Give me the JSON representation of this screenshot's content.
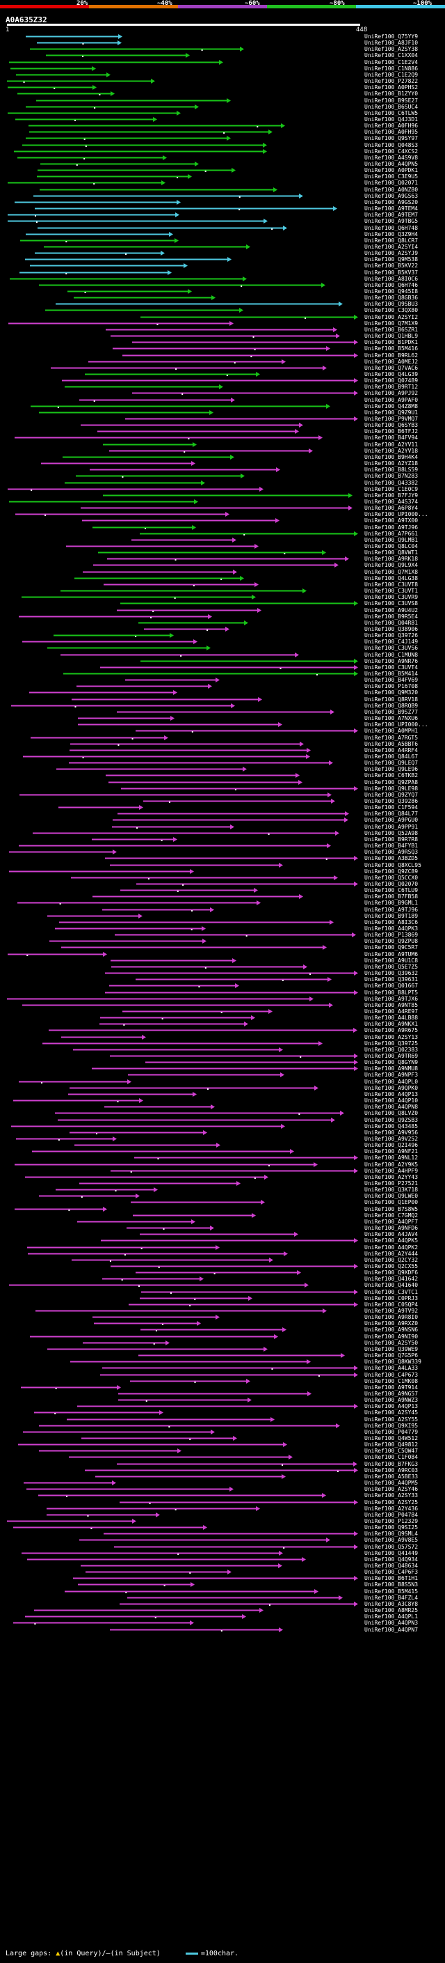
{
  "header": {
    "query_id": "A0A635Z32",
    "query_start": "1",
    "query_end": "448",
    "scale": {
      "labels": [
        "20%",
        "~40%",
        "~60%",
        "~80%",
        "~100%"
      ],
      "colors": [
        "#e00000",
        "#e07000",
        "#a040c0",
        "#20c020",
        "#40c8e8"
      ]
    }
  },
  "colors": {
    "cyan": "#4ec9e0",
    "green": "#18c418",
    "magenta": "#d040d0",
    "gap": "#ffffff"
  },
  "hits": [
    "UniRef100_Q75YY9",
    "UniRef100_A8JF10",
    "UniRef100_A2SY38",
    "UniRef100_C1XX04",
    "UniRef100_C1E2V4",
    "UniRef100_C1N886",
    "UniRef100_C1E2Q9",
    "UniRef100_P27822",
    "UniRef100_A0PHS2",
    "UniRef100_B1ZYY0",
    "UniRef100_B9SE27",
    "UniRef100_B6SUC4",
    "UniRef100_C6TLW5",
    "UniRef100_Q4J3D1",
    "UniRef100_A0FH96",
    "UniRef100_A0FH95",
    "UniRef100_Q9SY97",
    "UniRef100_Q048S3",
    "UniRef100_C4XCS2",
    "UniRef100_A4S9V8",
    "UniRef100_A4QPN5",
    "UniRef100_A0PDK1",
    "UniRef100_C3E9U5",
    "UniRef100_Q02071",
    "UniRef100_A0NZ80",
    "UniRef100_A9GS63",
    "UniRef100_A9GS20",
    "UniRef100_A9TEM4",
    "UniRef100_A9TEM7",
    "UniRef100_A9TBG5",
    "UniRef100_Q6H748",
    "UniRef100_Q3Z9H4",
    "UniRef100_Q8LCR7",
    "UniRef100_A2SYI4",
    "UniRef100_A2SYJ9",
    "UniRef100_Q9M538",
    "UniRef100_B5KV22",
    "UniRef100_B5KV37",
    "UniRef100_A8I0C6",
    "UniRef100_Q6H746",
    "UniRef100_Q945I8",
    "UniRef100_Q8GB36",
    "UniRef100_Q9SBU3",
    "UniRef100_C3QX80",
    "UniRef100_A2SYI2",
    "UniRef100_Q7M1X9",
    "UniRef100_B6SZR1",
    "UniRef100_Q1HBL9",
    "UniRef100_B1PDK1",
    "UniRef100_B5M416",
    "UniRef100_B9RL62",
    "UniRef100_A0MEJ2",
    "UniRef100_Q7VAC6",
    "UniRef100_Q4LG39",
    "UniRef100_Q07489",
    "UniRef100_B9RT12",
    "UniRef100_A9PJ92",
    "UniRef100_A9PAF0",
    "UniRef100_Q4Z8M8",
    "UniRef100_Q9Z9U1",
    "UniRef100_P9VMQ7",
    "UniRef100_Q6SYB3",
    "UniRef100_B6TFJ2",
    "UniRef100_B4FV94",
    "UniRef100_A2YV11",
    "UniRef100_A2YV18",
    "UniRef100_B9H4K4",
    "UniRef100_A2YZ18",
    "UniRef100_B8LS59",
    "UniRef100_B7N283",
    "UniRef100_Q43382",
    "UniRef100_C1E0C9",
    "UniRef100_B7FJY9",
    "UniRef100_A4S374",
    "UniRef100_A6P8Y4",
    "UniRef100_UPI000...",
    "UniRef100_A9TX00",
    "UniRef100_A9TJ96",
    "UniRef100_A7P661",
    "UniRef100_Q9LMB1",
    "UniRef100_Q8LC04",
    "UniRef100_Q8VWT1",
    "UniRef100_A9RK18",
    "UniRef100_Q9L9X4",
    "UniRef100_Q7M1X8",
    "UniRef100_Q4LG38",
    "UniRef100_C3UVT8",
    "UniRef100_C3UVT1",
    "UniRef100_C3UVR9",
    "UniRef100_C3UVS8",
    "UniRef100_A9U4U2",
    "UniRef100_B9R5E4",
    "UniRef100_Q04R81",
    "UniRef100_Q38906",
    "UniRef100_Q39726",
    "UniRef100_C4J149",
    "UniRef100_C3UVS6",
    "UniRef100_C1MUN8",
    "UniRef100_A9NR76",
    "UniRef100_C3UVT4",
    "UniRef100_B5M414",
    "UniRef100_B4FV69",
    "UniRef100_P16708",
    "UniRef100_Q9M320",
    "UniRef100_Q8RV18",
    "UniRef100_Q8RQB9",
    "UniRef100_B9SZ77",
    "UniRef100_A7NXU6",
    "UniRef100_UPI000...",
    "UniRef100_A0MPH1",
    "UniRef100_A7RGT5",
    "UniRef100_A5BBT6",
    "UniRef100_A4RRF4",
    "UniRef100_Q84L67",
    "UniRef100_Q9LEQ7",
    "UniRef100_Q9LE96",
    "UniRef100_C6TKB2",
    "UniRef100_Q9ZPA8",
    "UniRef100_Q9LE98",
    "UniRef100_Q9ZYQ7",
    "UniRef100_Q39286",
    "UniRef100_C1F594",
    "UniRef100_Q84L77",
    "UniRef100_A9PGU0",
    "UniRef100_A9PP91",
    "UniRef100_Q52A98",
    "UniRef100_B9R7R8",
    "UniRef100_B4FYB1",
    "UniRef100_A9RSQ3",
    "UniRef100_A3BZD5",
    "UniRef100_Q8XCL95",
    "UniRef100_Q9ZC89",
    "UniRef100_Q5CCX0",
    "UniRef100_Q02070",
    "UniRef100_C6TLU9",
    "UniRef100_B7FB58",
    "UniRef100_B9GML1",
    "UniRef100_A9TJ96",
    "UniRef100_B9T189",
    "UniRef100_A8I3C6",
    "UniRef100_A4QPK3",
    "UniRef100_P13869",
    "UniRef100_Q9ZPU8",
    "UniRef100_Q9C5R7",
    "UniRef100_A9TUM6",
    "UniRef100_A9U1C8",
    "UniRef100_Q5E7Z5",
    "UniRef100_Q39632",
    "UniRef100_Q39631",
    "UniRef100_Q01667",
    "UniRef100_B8LPT5",
    "UniRef100_A9TJX6",
    "UniRef100_A9NT85",
    "UniRef100_A4RE97",
    "UniRef100_A4LB88",
    "UniRef100_A9NKX1",
    "UniRef100_A9R675",
    "UniRef100_A2SY13",
    "UniRef100_Q39725",
    "UniRef100_Q02383",
    "UniRef100_A9TR69",
    "UniRef100_Q8GYN9",
    "UniRef100_A9NMU8",
    "UniRef100_A9NPF3",
    "UniRef100_A4QPL0",
    "UniRef100_A9QPK0",
    "UniRef100_A4QP13",
    "UniRef100_A4QP10",
    "UniRef100_A4QPN8",
    "UniRef100_Q8LVZ0",
    "UniRef100_Q9ZSB3",
    "UniRef100_Q43485",
    "UniRef100_A9V956",
    "UniRef100_A9V252",
    "UniRef100_Q2I496",
    "UniRef100_A9NF21",
    "UniRef100_A9NL12",
    "UniRef100_A2Y9K5",
    "UniRef100_A4HPF9",
    "UniRef100_A2YY43",
    "UniRef100_P27521",
    "UniRef100_Q3K718",
    "UniRef100_Q9LWE0",
    "UniRef100_Q1EP00",
    "UniRef100_B7S8W5",
    "UniRef100_C7GMQ2",
    "UniRef100_A4QPF7",
    "UniRef100_A9NFD6",
    "UniRef100_A4JAV4",
    "UniRef100_A4QPK5",
    "UniRef100_A4QPK2",
    "UniRef100_A2Y444",
    "UniRef100_Q2CY32",
    "UniRef100_Q2CX55",
    "UniRef100_Q9XDF6",
    "UniRef100_Q41642",
    "UniRef100_Q41640",
    "UniRef100_C3VTC1",
    "UniRef100_C0PRJ3",
    "UniRef100_C0SQP4",
    "UniRef100_A9TV92",
    "UniRef100_A9R8I0",
    "UniRef100_A9RXZ0",
    "UniRef100_A9NSN6",
    "UniRef100_A9NI90",
    "UniRef100_A2SY50",
    "UniRef100_Q39WE9",
    "UniRef100_Q7G5P6",
    "UniRef100_Q8KW339",
    "UniRef100_A4LA33",
    "UniRef100_C4P673",
    "UniRef100_C1MK08",
    "UniRef100_A9T914",
    "UniRef100_A9NG57",
    "UniRef100_A9NWZ3",
    "UniRef100_A4QP13",
    "UniRef100_A2SY45",
    "UniRef100_A2SY55",
    "UniRef100_Q9XI95",
    "UniRef100_P04779",
    "UniRef100_Q4W512",
    "UniRef100_Q49812",
    "UniRef100_C5QW47",
    "UniRef100_C1F084",
    "UniRef100_B7FKG3",
    "UniRef100_A9RC03",
    "UniRef100_A5BE33",
    "UniRef100_A4QPM5",
    "UniRef100_A2SY46",
    "UniRef100_A2SY33",
    "UniRef100_A2SY25",
    "UniRef100_A2Y436",
    "UniRef100_P04784",
    "UniRef100_P12329",
    "UniRef100_Q9SI25",
    "UniRef100_Q9SML4",
    "UniRef100_A9V8E5",
    "UniRef100_Q57S72",
    "UniRef100_Q41449",
    "UniRef100_Q4Q934",
    "UniRef100_Q48634",
    "UniRef100_C4P6F3",
    "UniRef100_B6T1H1",
    "UniRef100_B8S5N3",
    "UniRef100_B5M415",
    "UniRef100_B4FZL4",
    "UniRef100_A3C8Y8",
    "UniRef100_A8MR25",
    "UniRef100_A4QPL1",
    "UniRef100_A4QPN3",
    "UniRef100_A4QPN7"
  ],
  "legend": {
    "large_gaps_label": "Large gaps:",
    "in_query": "(in Query)",
    "in_subject": "(in Subject)",
    "scale_label": "=100char."
  }
}
